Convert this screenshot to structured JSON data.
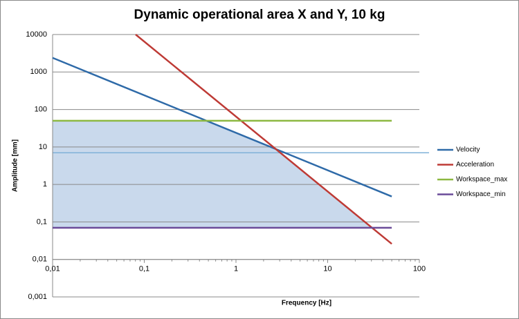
{
  "chart_data": {
    "type": "line",
    "title": "Dynamic operational area X and Y, 10 kg",
    "x_label": "Frequency [Hz]",
    "y_label": "Amplitude [mm]",
    "log_x": true,
    "log_y": true,
    "grid": true,
    "legend": "right",
    "xlim": [
      0.01,
      100
    ],
    "xticks": [
      {
        "value": 0.01,
        "label": "0,01"
      },
      {
        "value": 0.1,
        "label": "0,1"
      },
      1,
      10,
      100
    ],
    "ylim": [
      0.001,
      10000
    ],
    "yticks": [
      {
        "value": 0.001,
        "label": "0,001"
      },
      {
        "value": 0.01,
        "label": "0,01"
      },
      {
        "value": 0.1,
        "label": "0,1"
      },
      1,
      10,
      100,
      1000,
      10000
    ],
    "series": [
      {
        "name": "Velocity",
        "color": "#2e6aa8",
        "x": [
          0.01,
          50
        ],
        "values": [
          2390,
          0.478
        ]
      },
      {
        "name": "Acceleration",
        "color": "#be3a35",
        "x": [
          0.0805,
          50
        ],
        "values": [
          10000,
          0.026
        ]
      },
      {
        "name": "Workspace_max",
        "color": "#8cb840",
        "x": [
          0.01,
          50
        ],
        "values": [
          50,
          50
        ]
      },
      {
        "name": "Workspace_min",
        "color": "#6a4a98",
        "x": [
          0.01,
          50
        ],
        "values": [
          0.07,
          0.07
        ]
      }
    ],
    "reference_line": {
      "value": 7,
      "color": "#7fb1d8"
    },
    "fill_color": "#c9d9ec"
  }
}
